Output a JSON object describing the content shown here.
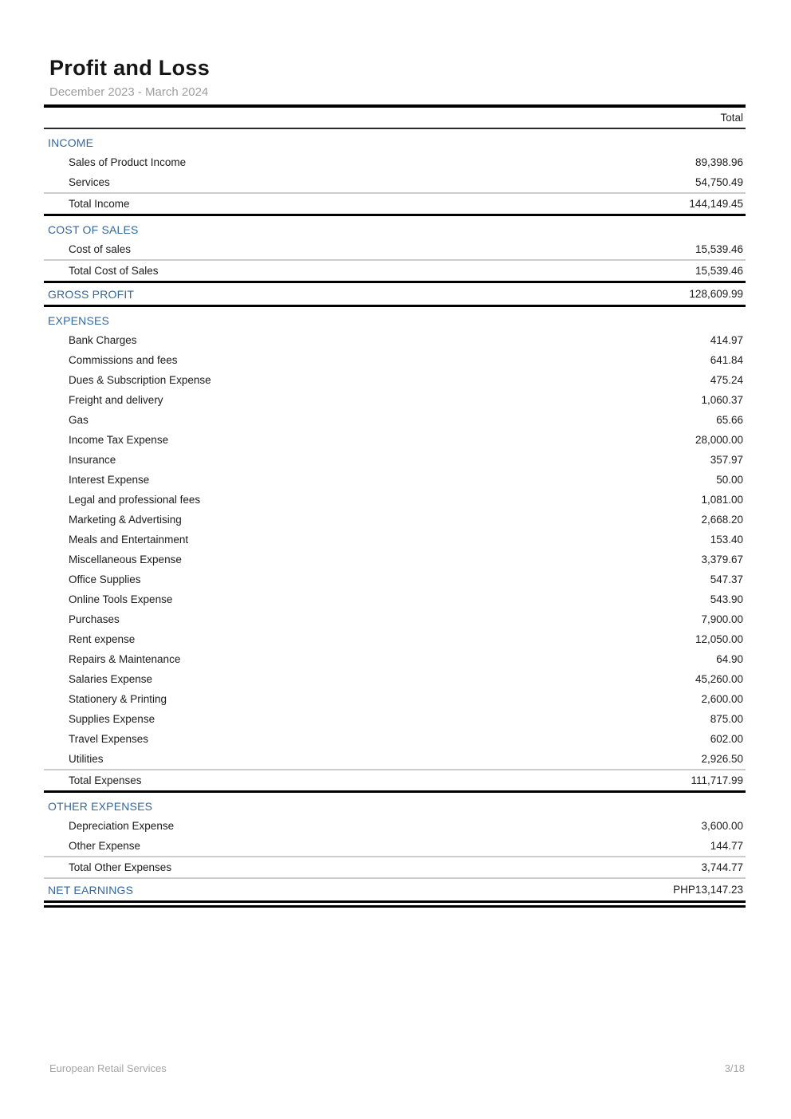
{
  "report": {
    "title": "Profit and Loss",
    "period": "December 2023 - March 2024",
    "column_header": "Total",
    "currency_note": "PHP",
    "colors": {
      "heading_blue": "#35679a",
      "body_text": "#1b1b1b",
      "muted_gray": "#9e9e9e",
      "rule_light": "#cccccc",
      "rule_dark": "#000000"
    },
    "sections": [
      {
        "kind": "group",
        "heading": "INCOME",
        "rows": [
          {
            "label": "Sales of Product Income",
            "value": "89,398.96"
          },
          {
            "label": "Services",
            "value": "54,750.49"
          }
        ],
        "total": {
          "label": "Total Income",
          "value": "144,149.45"
        },
        "bottom_rule": "thick"
      },
      {
        "kind": "group",
        "heading": "COST OF SALES",
        "rows": [
          {
            "label": "Cost of sales",
            "value": "15,539.46"
          }
        ],
        "total": {
          "label": "Total Cost of Sales",
          "value": "15,539.46"
        },
        "bottom_rule": "thick"
      },
      {
        "kind": "summary",
        "heading": "GROSS PROFIT",
        "value": "128,609.99",
        "bottom_rule": "thick"
      },
      {
        "kind": "group",
        "heading": "EXPENSES",
        "rows": [
          {
            "label": "Bank Charges",
            "value": "414.97"
          },
          {
            "label": "Commissions and fees",
            "value": "641.84"
          },
          {
            "label": "Dues & Subscription Expense",
            "value": "475.24"
          },
          {
            "label": "Freight and delivery",
            "value": "1,060.37"
          },
          {
            "label": "Gas",
            "value": "65.66"
          },
          {
            "label": "Income Tax Expense",
            "value": "28,000.00"
          },
          {
            "label": "Insurance",
            "value": "357.97"
          },
          {
            "label": "Interest Expense",
            "value": "50.00"
          },
          {
            "label": "Legal and professional fees",
            "value": "1,081.00"
          },
          {
            "label": "Marketing & Advertising",
            "value": "2,668.20"
          },
          {
            "label": "Meals and Entertainment",
            "value": "153.40"
          },
          {
            "label": "Miscellaneous Expense",
            "value": "3,379.67"
          },
          {
            "label": "Office Supplies",
            "value": "547.37"
          },
          {
            "label": "Online Tools Expense",
            "value": "543.90"
          },
          {
            "label": "Purchases",
            "value": "7,900.00"
          },
          {
            "label": "Rent expense",
            "value": "12,050.00"
          },
          {
            "label": "Repairs & Maintenance",
            "value": "64.90"
          },
          {
            "label": "Salaries Expense",
            "value": "45,260.00"
          },
          {
            "label": "Stationery & Printing",
            "value": "2,600.00"
          },
          {
            "label": "Supplies Expense",
            "value": "875.00"
          },
          {
            "label": "Travel Expenses",
            "value": "602.00"
          },
          {
            "label": "Utilities",
            "value": "2,926.50"
          }
        ],
        "total": {
          "label": "Total Expenses",
          "value": "111,717.99"
        },
        "bottom_rule": "thick"
      },
      {
        "kind": "group",
        "heading": "OTHER EXPENSES",
        "rows": [
          {
            "label": "Depreciation Expense",
            "value": "3,600.00"
          },
          {
            "label": "Other Expense",
            "value": "144.77"
          }
        ],
        "total": {
          "label": "Total Other Expenses",
          "value": "3,744.77"
        },
        "bottom_rule": "thin"
      },
      {
        "kind": "summary",
        "heading": "NET EARNINGS",
        "value": "PHP13,147.23",
        "bottom_rule": "double"
      }
    ],
    "footer": {
      "company": "European Retail Services",
      "page": "3/18"
    }
  }
}
